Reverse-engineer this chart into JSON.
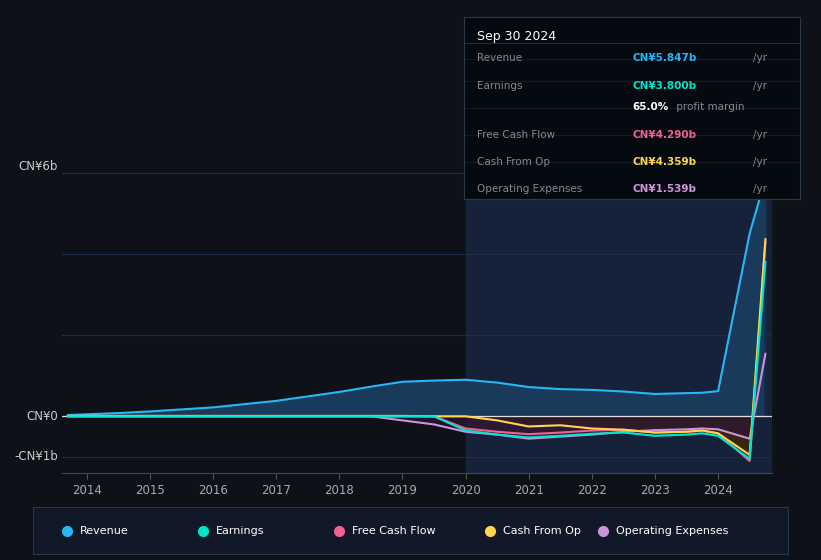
{
  "bg_color": "#0e1117",
  "plot_bg": "#0e1117",
  "shade_color": "#1a2a4a",
  "grid_color": "#1e2d45",
  "zero_line_color": "#e0e0e0",
  "info_bg": "#050a10",
  "info_border": "#2a3a4a",
  "title": "Sep 30 2024",
  "info_rows": [
    {
      "label": "Revenue",
      "value": "CN¥5.847b",
      "color": "#29b6f6"
    },
    {
      "label": "Earnings",
      "value": "CN¥3.800b",
      "color": "#00e5cc"
    },
    {
      "label": "",
      "value": "65.0%",
      "suffix": " profit margin",
      "color": "#ffffff"
    },
    {
      "label": "Free Cash Flow",
      "value": "CN¥4.290b",
      "color": "#f06292"
    },
    {
      "label": "Cash From Op",
      "value": "CN¥4.359b",
      "color": "#ffd54f"
    },
    {
      "label": "Operating Expenses",
      "value": "CN¥1.539b",
      "color": "#ce93d8"
    }
  ],
  "ylabel_top": "CN¥6b",
  "ylabel_zero": "CN¥0",
  "ylabel_neg": "-CN¥1b",
  "ylim_min": -1400000000.0,
  "ylim_max": 6800000000.0,
  "years": [
    2013.7,
    2014.0,
    2014.5,
    2015.0,
    2015.5,
    2016.0,
    2016.5,
    2017.0,
    2017.5,
    2018.0,
    2018.5,
    2019.0,
    2019.5,
    2020.0,
    2020.5,
    2021.0,
    2021.5,
    2022.0,
    2022.5,
    2023.0,
    2023.5,
    2023.75,
    2024.0,
    2024.5,
    2024.75
  ],
  "revenue": [
    30000000.0,
    50000000.0,
    80000000.0,
    120000000.0,
    170000000.0,
    220000000.0,
    300000000.0,
    380000000.0,
    490000000.0,
    600000000.0,
    730000000.0,
    850000000.0,
    880000000.0,
    900000000.0,
    830000000.0,
    720000000.0,
    670000000.0,
    650000000.0,
    610000000.0,
    550000000.0,
    570000000.0,
    580000000.0,
    620000000.0,
    4500000000.0,
    5847000000.0
  ],
  "earnings": [
    0.0,
    0.0,
    0.0,
    0.0,
    0.0,
    0.0,
    0.0,
    0.0,
    0.0,
    0.0,
    0.0,
    0.0,
    0.0,
    -350000000.0,
    -450000000.0,
    -520000000.0,
    -480000000.0,
    -430000000.0,
    -400000000.0,
    -480000000.0,
    -450000000.0,
    -420000000.0,
    -480000000.0,
    -1050000000.0,
    3800000000.0
  ],
  "free_cash": [
    0.0,
    0.0,
    0.0,
    0.0,
    0.0,
    0.0,
    0.0,
    0.0,
    0.0,
    0.0,
    0.0,
    0.0,
    0.0,
    -300000000.0,
    -380000000.0,
    -440000000.0,
    -400000000.0,
    -350000000.0,
    -330000000.0,
    -400000000.0,
    -380000000.0,
    -350000000.0,
    -420000000.0,
    -1100000000.0,
    4290000000.0
  ],
  "cash_from_op": [
    10000000.0,
    10000000.0,
    10000000.0,
    10000000.0,
    10000000.0,
    10000000.0,
    10000000.0,
    10000000.0,
    10000000.0,
    10000000.0,
    10000000.0,
    10000000.0,
    0.0,
    0.0,
    -100000000.0,
    -250000000.0,
    -220000000.0,
    -300000000.0,
    -330000000.0,
    -400000000.0,
    -380000000.0,
    -350000000.0,
    -420000000.0,
    -950000000.0,
    4359000000.0
  ],
  "op_expenses": [
    0.0,
    0.0,
    0.0,
    0.0,
    0.0,
    0.0,
    0.0,
    0.0,
    0.0,
    0.0,
    0.0,
    -100000000.0,
    -200000000.0,
    -380000000.0,
    -450000000.0,
    -550000000.0,
    -500000000.0,
    -450000000.0,
    -380000000.0,
    -340000000.0,
    -320000000.0,
    -300000000.0,
    -320000000.0,
    -550000000.0,
    1539000000.0
  ],
  "revenue_line": "#29b6f6",
  "revenue_fill": "#1a3a5c",
  "earnings_line": "#00e5cc",
  "earnings_fill_neg": "#1a2a3a",
  "earnings_fill_pos": "#003333",
  "free_cash_line": "#f06292",
  "free_cash_fill": "#3d1a28",
  "cash_from_op_line": "#ffd54f",
  "cash_from_op_fill": "#3a2a00",
  "op_expenses_line": "#ce93d8",
  "op_expenses_fill": "#2a1535",
  "shade_start": 2020.0,
  "x_tick_years": [
    2014,
    2015,
    2016,
    2017,
    2018,
    2019,
    2020,
    2021,
    2022,
    2023,
    2024
  ],
  "legend_items": [
    {
      "label": "Revenue",
      "color": "#29b6f6"
    },
    {
      "label": "Earnings",
      "color": "#00e5cc"
    },
    {
      "label": "Free Cash Flow",
      "color": "#f06292"
    },
    {
      "label": "Cash From Op",
      "color": "#ffd54f"
    },
    {
      "label": "Operating Expenses",
      "color": "#ce93d8"
    }
  ]
}
